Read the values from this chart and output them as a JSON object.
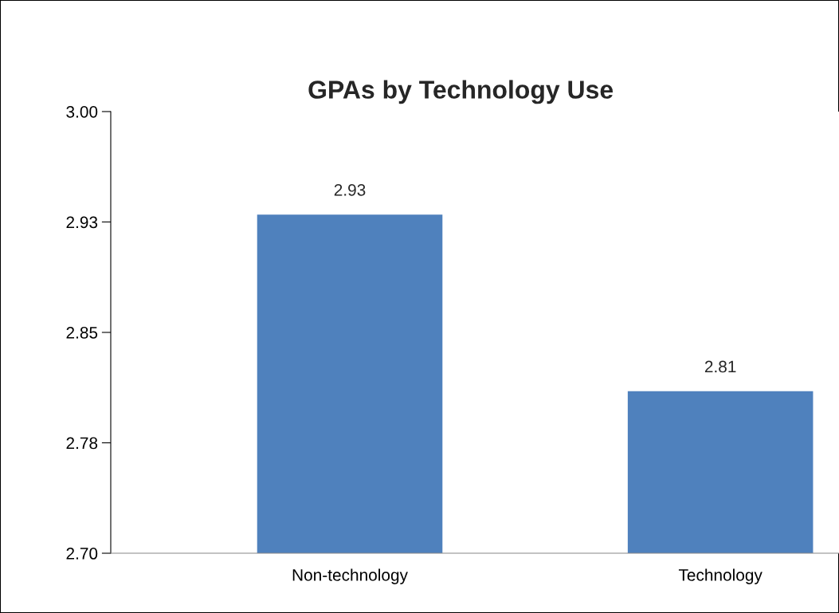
{
  "chart_data": {
    "type": "bar",
    "title": "GPAs by Technology Use",
    "categories": [
      "Non-technology",
      "Technology"
    ],
    "values": [
      2.93,
      2.81
    ],
    "color": "#4f81bd",
    "ylim": [
      2.7,
      3.0
    ],
    "yticks": [
      {
        "value": 2.7,
        "label": "2.70"
      },
      {
        "value": 2.775,
        "label": "2.78"
      },
      {
        "value": 2.85,
        "label": "2.85"
      },
      {
        "value": 2.925,
        "label": "2.93"
      },
      {
        "value": 3.0,
        "label": "3.00"
      }
    ],
    "data_labels": true,
    "grid": false
  }
}
